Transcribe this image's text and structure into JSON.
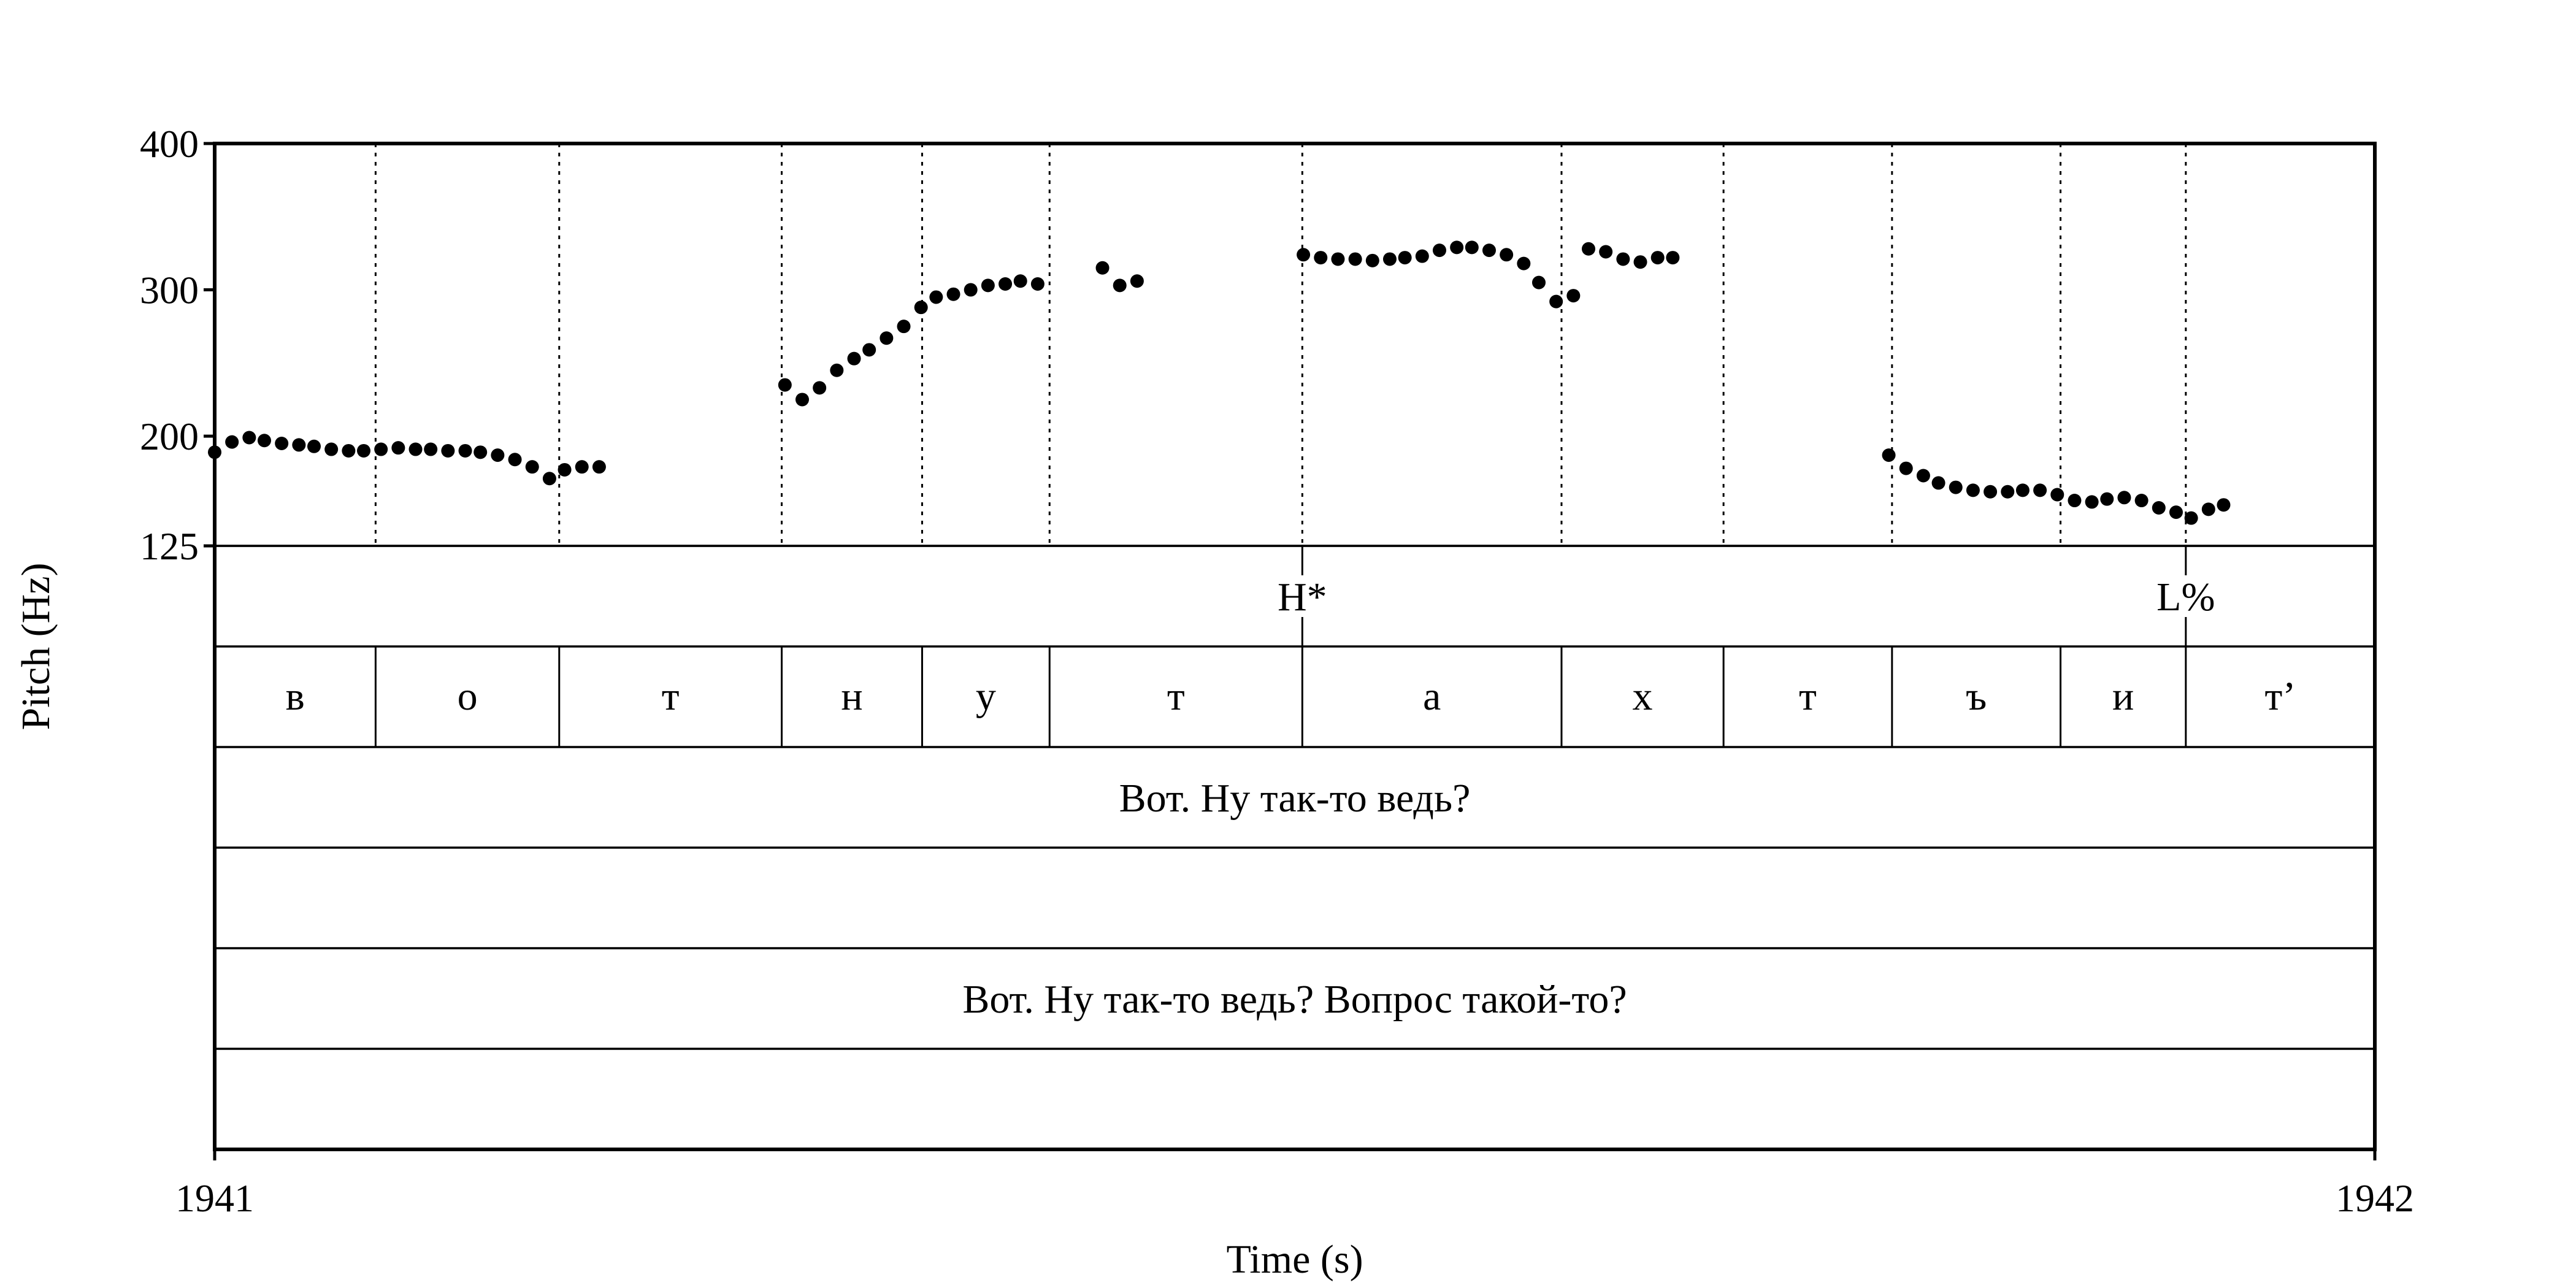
{
  "chart_data": {
    "type": "scatter",
    "xlabel": "Time (s)",
    "ylabel": "Pitch (Hz)",
    "xlim": [
      1941,
      1942
    ],
    "ylim": [
      125,
      400
    ],
    "x_tick_labels": [
      "1941",
      "1942"
    ],
    "y_ticks": [
      125,
      200,
      300,
      400
    ],
    "y_tick_labels": [
      "125",
      "200",
      "300",
      "400"
    ],
    "grid": false,
    "series": [
      {
        "marker": "filled-circle",
        "color": "#000000",
        "points": [
          [
            1941.0,
            189
          ],
          [
            1941.008,
            196
          ],
          [
            1941.016,
            199
          ],
          [
            1941.023,
            197
          ],
          [
            1941.031,
            195
          ],
          [
            1941.039,
            194
          ],
          [
            1941.046,
            193
          ],
          [
            1941.054,
            191
          ],
          [
            1941.062,
            190
          ],
          [
            1941.069,
            190
          ],
          [
            1941.077,
            191
          ],
          [
            1941.085,
            192
          ],
          [
            1941.093,
            191
          ],
          [
            1941.1,
            191
          ],
          [
            1941.108,
            190
          ],
          [
            1941.116,
            190
          ],
          [
            1941.123,
            189
          ],
          [
            1941.131,
            187
          ],
          [
            1941.139,
            184
          ],
          [
            1941.147,
            179
          ],
          [
            1941.155,
            171
          ],
          [
            1941.162,
            177
          ],
          [
            1941.17,
            179
          ],
          [
            1941.178,
            179
          ],
          [
            1941.264,
            235
          ],
          [
            1941.272,
            225
          ],
          [
            1941.28,
            233
          ],
          [
            1941.288,
            245
          ],
          [
            1941.296,
            253
          ],
          [
            1941.303,
            259
          ],
          [
            1941.311,
            267
          ],
          [
            1941.319,
            275
          ],
          [
            1941.327,
            288
          ],
          [
            1941.334,
            295
          ],
          [
            1941.342,
            297
          ],
          [
            1941.35,
            300
          ],
          [
            1941.358,
            303
          ],
          [
            1941.366,
            304
          ],
          [
            1941.373,
            306
          ],
          [
            1941.381,
            304
          ],
          [
            1941.411,
            315
          ],
          [
            1941.419,
            303
          ],
          [
            1941.427,
            306
          ],
          [
            1941.504,
            324
          ],
          [
            1941.512,
            322
          ],
          [
            1941.52,
            321
          ],
          [
            1941.528,
            321
          ],
          [
            1941.536,
            320
          ],
          [
            1941.544,
            321
          ],
          [
            1941.551,
            322
          ],
          [
            1941.559,
            323
          ],
          [
            1941.567,
            327
          ],
          [
            1941.575,
            329
          ],
          [
            1941.582,
            329
          ],
          [
            1941.59,
            327
          ],
          [
            1941.598,
            324
          ],
          [
            1941.606,
            318
          ],
          [
            1941.613,
            305
          ],
          [
            1941.621,
            292
          ],
          [
            1941.629,
            296
          ],
          [
            1941.636,
            328
          ],
          [
            1941.644,
            326
          ],
          [
            1941.652,
            321
          ],
          [
            1941.66,
            319
          ],
          [
            1941.668,
            322
          ],
          [
            1941.675,
            322
          ],
          [
            1941.775,
            187
          ],
          [
            1941.783,
            178
          ],
          [
            1941.791,
            173
          ],
          [
            1941.798,
            168
          ],
          [
            1941.806,
            165
          ],
          [
            1941.814,
            163
          ],
          [
            1941.822,
            162
          ],
          [
            1941.83,
            162
          ],
          [
            1941.837,
            163
          ],
          [
            1941.845,
            163
          ],
          [
            1941.853,
            160
          ],
          [
            1941.861,
            156
          ],
          [
            1941.869,
            155
          ],
          [
            1941.876,
            157
          ],
          [
            1941.884,
            158
          ],
          [
            1941.892,
            156
          ],
          [
            1941.9,
            151
          ],
          [
            1941.908,
            148
          ],
          [
            1941.915,
            144
          ],
          [
            1941.923,
            150
          ],
          [
            1941.93,
            153
          ]
        ]
      }
    ]
  },
  "boundaries": [
    1941.0745,
    1941.1595,
    1941.2625,
    1941.3275,
    1941.3865,
    1941.5035,
    1941.6235,
    1941.6985,
    1941.7765,
    1941.8545,
    1941.9125
  ],
  "tiers": {
    "tones": [
      {
        "label": "H*",
        "time": 1941.5035
      },
      {
        "label": "L%",
        "time": 1941.9125
      }
    ],
    "phones": [
      {
        "label": "в",
        "start": 1941.0,
        "end": 1941.0745
      },
      {
        "label": "о",
        "start": 1941.0745,
        "end": 1941.1595
      },
      {
        "label": "т",
        "start": 1941.1595,
        "end": 1941.2625
      },
      {
        "label": "н",
        "start": 1941.2625,
        "end": 1941.3275
      },
      {
        "label": "у",
        "start": 1941.3275,
        "end": 1941.3865
      },
      {
        "label": "т",
        "start": 1941.3865,
        "end": 1941.5035
      },
      {
        "label": "а",
        "start": 1941.5035,
        "end": 1941.6235
      },
      {
        "label": "х",
        "start": 1941.6235,
        "end": 1941.6985
      },
      {
        "label": "т",
        "start": 1941.6985,
        "end": 1941.7765
      },
      {
        "label": "ъ",
        "start": 1941.7765,
        "end": 1941.8545
      },
      {
        "label": "и",
        "start": 1941.8545,
        "end": 1941.9125
      },
      {
        "label": "т’",
        "start": 1941.9125,
        "end": 1942.0
      }
    ],
    "utterance": "Вот. Ну так-то ведь?",
    "empty_tier_1": "",
    "sentence": "Вот. Ну так-то ведь? Вопрос такой-то?",
    "empty_tier_2": ""
  }
}
